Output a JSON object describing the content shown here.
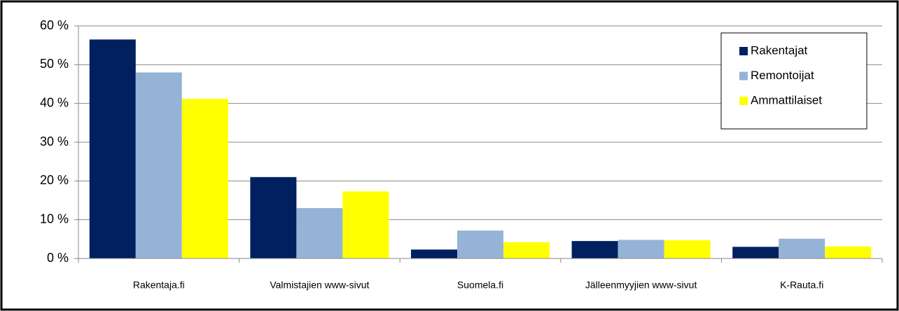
{
  "chart_data": {
    "type": "bar",
    "categories": [
      "Rakentaja.fi",
      "Valmistajien www-sivut",
      "Suomela.fi",
      "Jälleenmyyjien www-sivut",
      "K-Rauta.fi"
    ],
    "series": [
      {
        "name": "Rakentajat",
        "color": "#002060",
        "values": [
          56.5,
          21,
          2.3,
          4.5,
          3
        ]
      },
      {
        "name": "Remontoijat",
        "color": "#95b3d7",
        "values": [
          48,
          13,
          7.2,
          4.8,
          5.1
        ]
      },
      {
        "name": "Ammattilaiset",
        "color": "#ffff00",
        "values": [
          41.2,
          17.3,
          4.2,
          4.7,
          3.1
        ]
      }
    ],
    "ylim": [
      0,
      60
    ],
    "yticks": [
      {
        "value": 0,
        "label": "0 %"
      },
      {
        "value": 10,
        "label": "10 %"
      },
      {
        "value": 20,
        "label": "20 %"
      },
      {
        "value": 30,
        "label": "30 %"
      },
      {
        "value": 40,
        "label": "40 %"
      },
      {
        "value": 50,
        "label": "50 %"
      },
      {
        "value": 60,
        "label": "60 %"
      }
    ],
    "grid": true,
    "legend": "upper right"
  }
}
